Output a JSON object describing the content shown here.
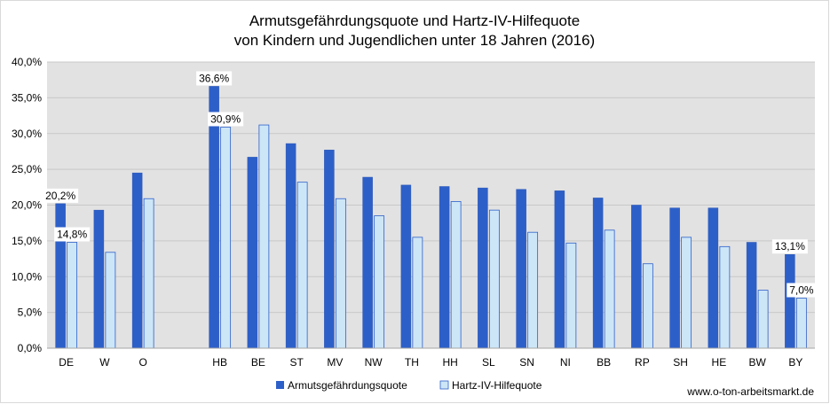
{
  "chart_data": {
    "type": "bar",
    "title_lines": [
      "Armutsgefährdungsquote und Hartz-IV-Hilfequote",
      "von Kindern und Jugendlichen unter 18 Jahren (2016)"
    ],
    "categories": [
      "DE",
      "W",
      "O",
      "",
      "HB",
      "BE",
      "ST",
      "MV",
      "NW",
      "TH",
      "HH",
      "SL",
      "SN",
      "NI",
      "BB",
      "RP",
      "SH",
      "HE",
      "BW",
      "BY"
    ],
    "series": [
      {
        "name": "Armutsgefährdungsquote",
        "color": "#2d5fc9",
        "values": [
          20.2,
          19.3,
          24.5,
          null,
          36.6,
          26.7,
          28.6,
          27.7,
          23.9,
          22.8,
          22.6,
          22.4,
          22.2,
          22.0,
          21.0,
          20.0,
          19.6,
          19.6,
          14.8,
          13.1
        ]
      },
      {
        "name": "Hartz-IV-Hilfequote",
        "color": "#cde6f7",
        "values": [
          14.8,
          13.4,
          20.9,
          null,
          30.9,
          31.2,
          23.2,
          20.9,
          18.5,
          15.5,
          20.5,
          19.3,
          16.2,
          14.7,
          16.5,
          11.8,
          15.5,
          14.2,
          8.1,
          7.0
        ]
      }
    ],
    "data_labels": [
      {
        "category_index": 0,
        "series_index": 0,
        "text": "20,2%"
      },
      {
        "category_index": 0,
        "series_index": 1,
        "text": "14,8%"
      },
      {
        "category_index": 4,
        "series_index": 0,
        "text": "36,6%"
      },
      {
        "category_index": 4,
        "series_index": 1,
        "text": "30,9%"
      },
      {
        "category_index": 19,
        "series_index": 0,
        "text": "13,1%"
      },
      {
        "category_index": 19,
        "series_index": 1,
        "text": "7,0%"
      }
    ],
    "y_ticks": [
      "0,0%",
      "5,0%",
      "10,0%",
      "15,0%",
      "20,0%",
      "25,0%",
      "30,0%",
      "35,0%",
      "40,0%"
    ],
    "ylim": [
      0,
      40
    ],
    "xlabel": "",
    "ylabel": "",
    "grid": true,
    "legend": "bottom",
    "plot_background": "#e2e2e2"
  },
  "source_text": "www.o-ton-arbeitsmarkt.de"
}
